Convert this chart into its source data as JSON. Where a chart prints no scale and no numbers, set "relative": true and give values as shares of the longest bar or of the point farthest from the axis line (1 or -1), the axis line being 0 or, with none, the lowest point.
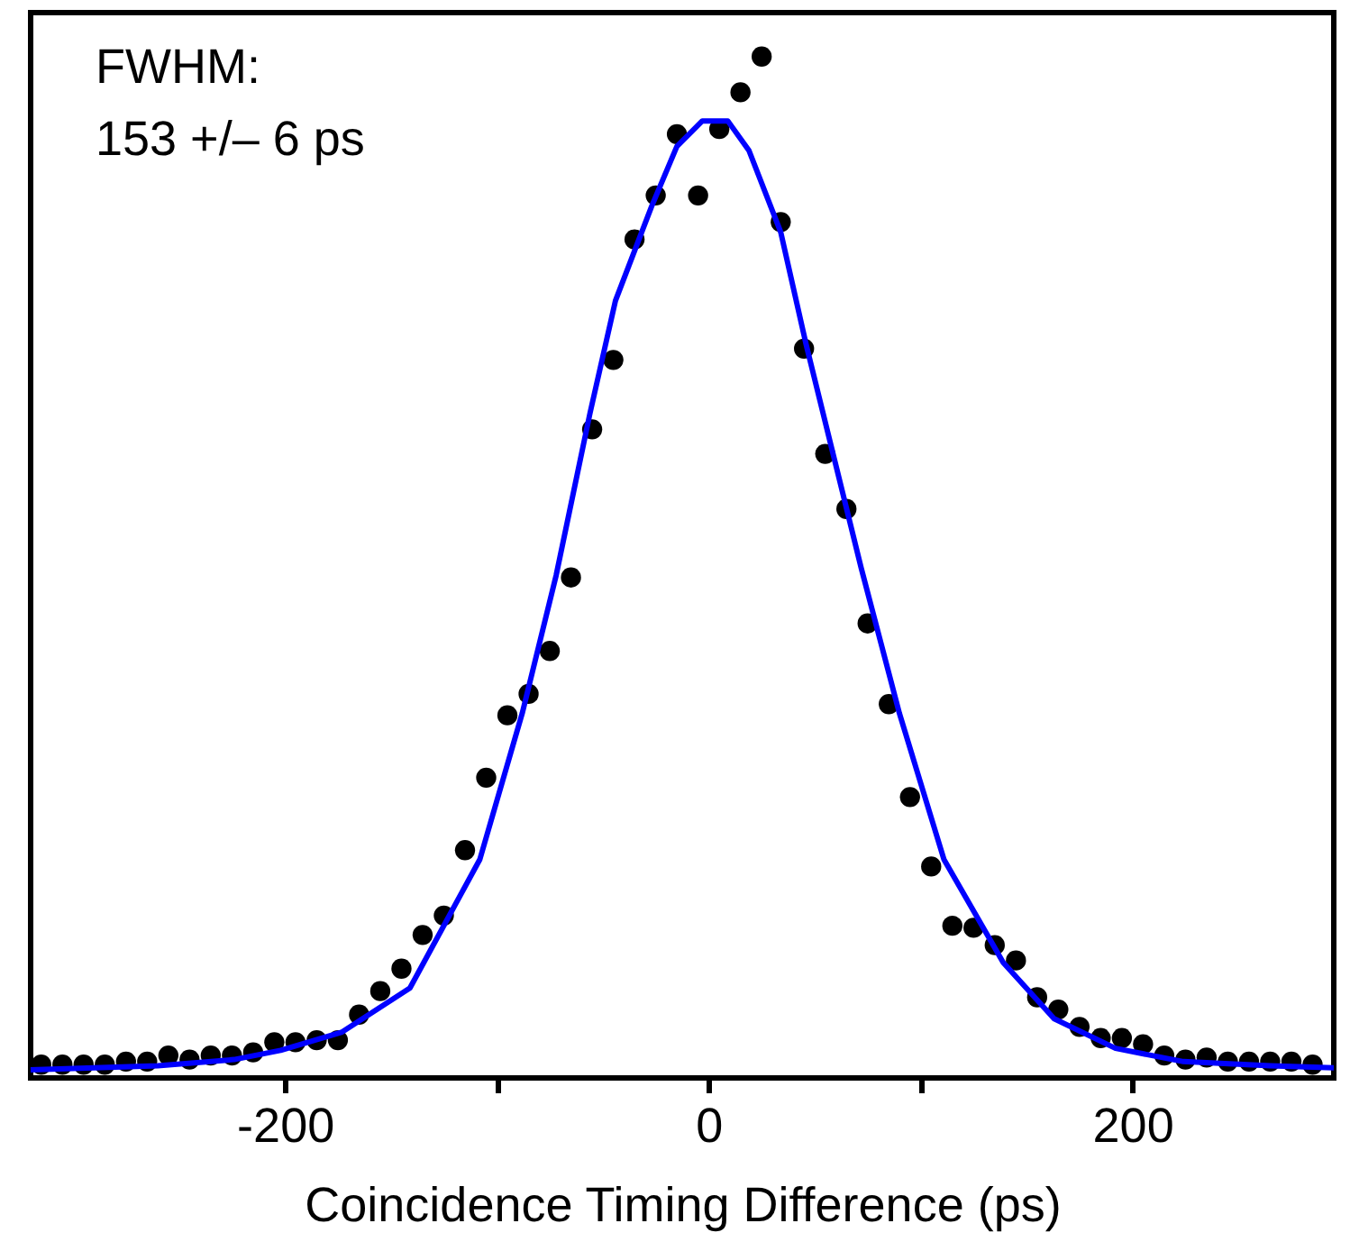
{
  "chart_data": {
    "type": "scatter",
    "relative": true,
    "xlabel": "Coincidence Timing Difference (ps)",
    "annotations": [
      "FWHM:",
      "153 +/– 6 ps"
    ],
    "xlim": [
      -320,
      295
    ],
    "xticks": [
      -200,
      {
        "value": -100,
        "label": null
      },
      0,
      {
        "value": 100,
        "label": null
      },
      200
    ],
    "grid": false,
    "marker": "circle",
    "series": [
      {
        "color": "#000000",
        "x": [
          -315,
          -305,
          -295,
          -285,
          -275,
          -265,
          -255,
          -245,
          -235,
          -225,
          -215,
          -205,
          -195,
          -185,
          -175,
          -165,
          -155,
          -145,
          -135,
          -125,
          -115,
          -105,
          -95,
          -85,
          -75,
          -65,
          -55,
          -45,
          -35,
          -25,
          -15,
          -5,
          5,
          15,
          25,
          34,
          45,
          55,
          65,
          75,
          85,
          95,
          105,
          115,
          125,
          135,
          145,
          155,
          165,
          175,
          185,
          195,
          205,
          215,
          225,
          235,
          245,
          255,
          265,
          275,
          285
        ],
        "values": [
          0.013,
          0.013,
          0.013,
          0.013,
          0.016,
          0.016,
          0.022,
          0.018,
          0.022,
          0.022,
          0.025,
          0.035,
          0.035,
          0.037,
          0.037,
          0.062,
          0.085,
          0.107,
          0.14,
          0.159,
          0.223,
          0.294,
          0.355,
          0.376,
          0.418,
          0.49,
          0.635,
          0.703,
          0.821,
          0.864,
          0.924,
          0.864,
          0.929,
          0.965,
          1.0,
          0.838,
          0.714,
          0.611,
          0.557,
          0.445,
          0.366,
          0.275,
          0.207,
          0.149,
          0.147,
          0.13,
          0.115,
          0.079,
          0.067,
          0.05,
          0.039,
          0.039,
          0.033,
          0.022,
          0.018,
          0.02,
          0.016,
          0.016,
          0.016,
          0.016,
          0.013
        ]
      },
      {
        "type": "line",
        "color": "#0000ff",
        "line_style": "solid",
        "marker": "none",
        "x": [
          -320,
          -260,
          -224,
          -202,
          -173,
          -141,
          -108,
          -88,
          -72,
          -56,
          -44,
          -27,
          -15,
          -3,
          9,
          19,
          34,
          46,
          60,
          72,
          90,
          111,
          139,
          163,
          192,
          224,
          265,
          295
        ],
        "values": [
          0.008,
          0.012,
          0.018,
          0.027,
          0.045,
          0.088,
          0.214,
          0.357,
          0.492,
          0.651,
          0.761,
          0.853,
          0.912,
          0.937,
          0.937,
          0.908,
          0.828,
          0.718,
          0.6,
          0.499,
          0.357,
          0.214,
          0.113,
          0.058,
          0.029,
          0.016,
          0.012,
          0.01
        ]
      }
    ]
  }
}
